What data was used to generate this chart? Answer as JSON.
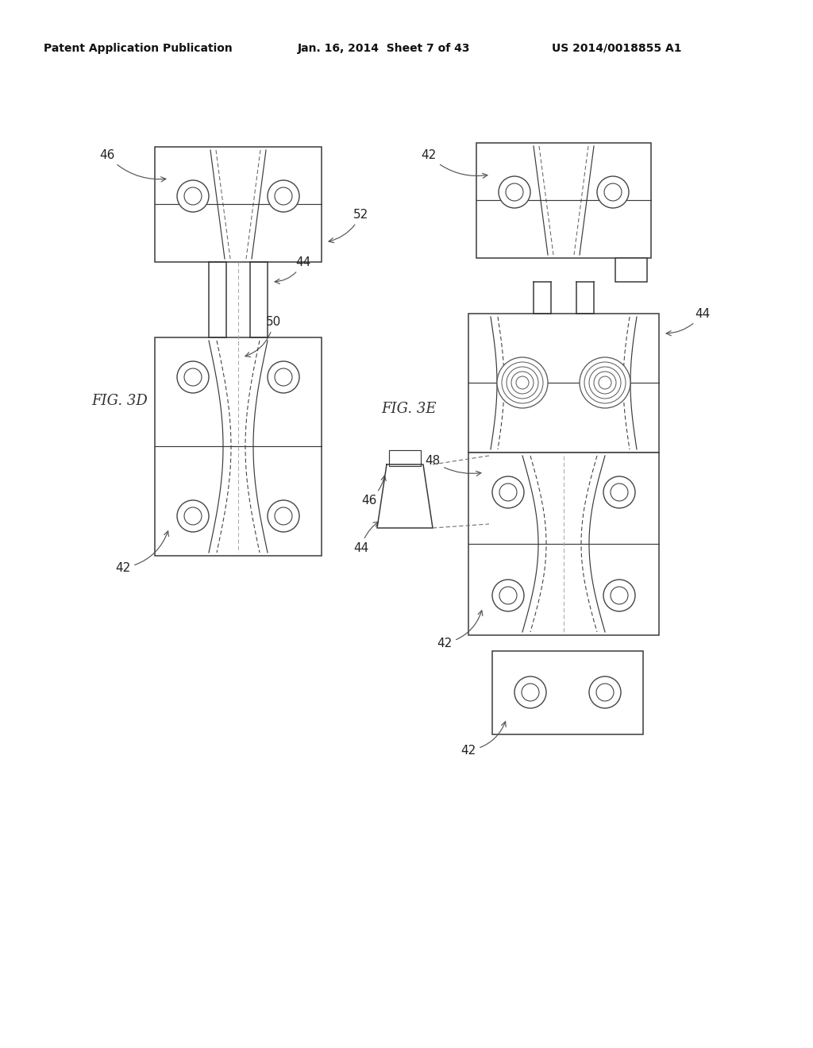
{
  "background_color": "#ffffff",
  "header_text": "Patent Application Publication",
  "header_date": "Jan. 16, 2014  Sheet 7 of 43",
  "header_patent": "US 2014/0018855 A1",
  "fig_label_3d": "FIG. 3D",
  "fig_label_3e": "FIG. 3E",
  "line_color": "#444444",
  "dashed_color": "#666666"
}
